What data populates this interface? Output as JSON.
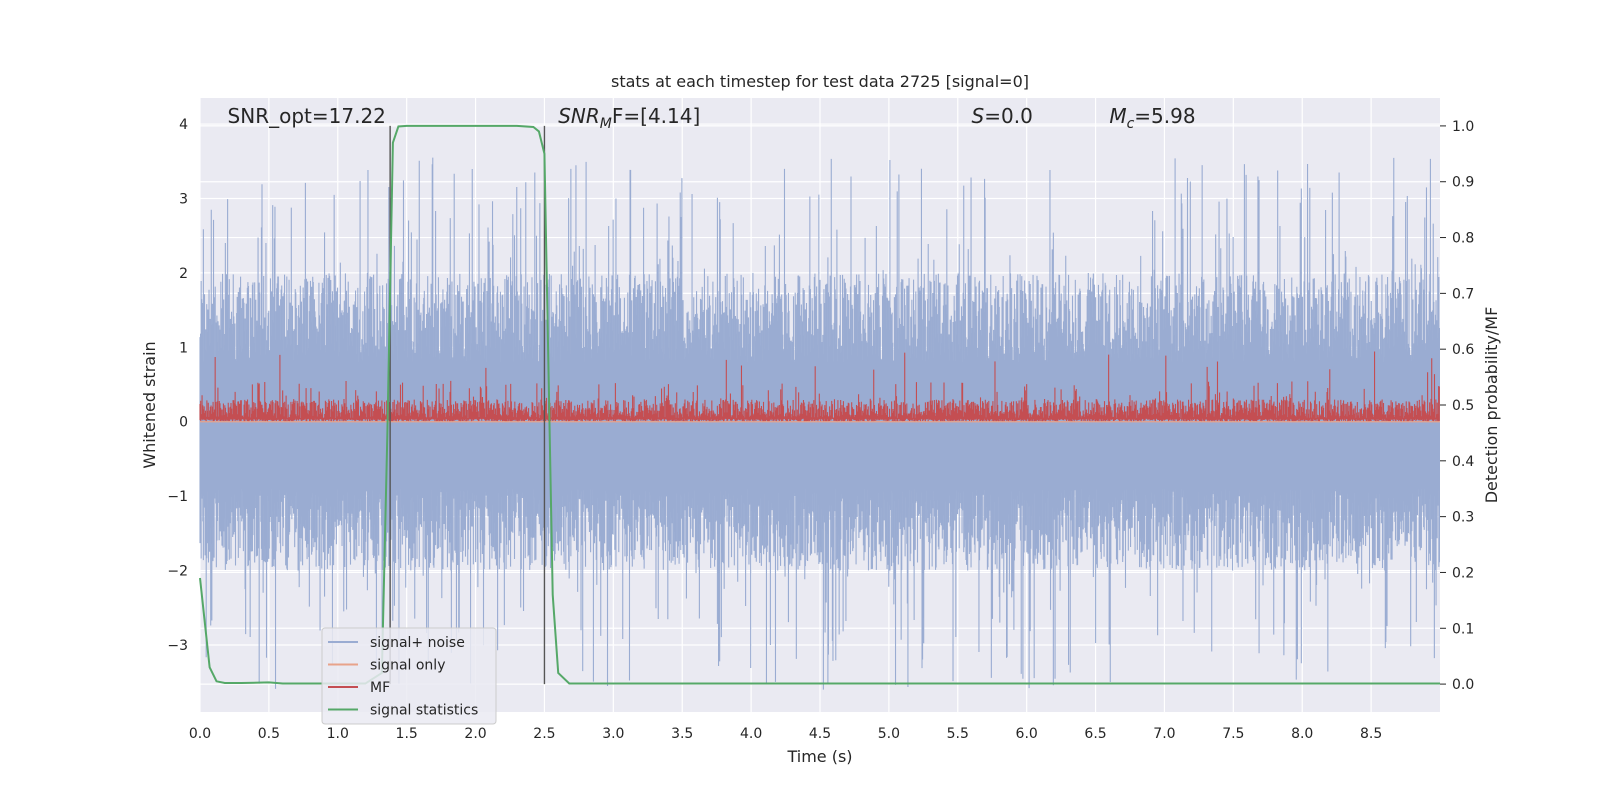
{
  "chart_data": {
    "type": "line",
    "title": "stats at each timestep for test data 2725 [signal=0]",
    "xlabel": "Time (s)",
    "ylabel": "Whitened strain",
    "ylabel_right": "Detection probability/MF",
    "xlim": [
      0,
      9
    ],
    "ylim": [
      -3.9,
      4.35
    ],
    "ylim_right": [
      -0.05,
      1.05
    ],
    "x_ticks": [
      0.0,
      0.5,
      1.0,
      1.5,
      2.0,
      2.5,
      3.0,
      3.5,
      4.0,
      4.5,
      5.0,
      5.5,
      6.0,
      6.5,
      7.0,
      7.5,
      8.0,
      8.5
    ],
    "x_tick_labels": [
      "0.0",
      "0.5",
      "1.0",
      "1.5",
      "2.0",
      "2.5",
      "3.0",
      "3.5",
      "4.0",
      "4.5",
      "5.0",
      "5.5",
      "6.0",
      "6.5",
      "7.0",
      "7.5",
      "8.0",
      "8.5"
    ],
    "y_ticks": [
      4,
      3,
      2,
      1,
      0,
      -1,
      -2,
      -3
    ],
    "y_tick_labels": [
      "4",
      "3",
      "2",
      "1",
      "0",
      "−1",
      "−2",
      "−3"
    ],
    "y_ticks_right": [
      1.0,
      0.9,
      0.8,
      0.7,
      0.6,
      0.5,
      0.4,
      0.3,
      0.2,
      0.1,
      0.0
    ],
    "y_tick_labels_right": [
      "1.0",
      "0.9",
      "0.8",
      "0.7",
      "0.6",
      "0.5",
      "0.4",
      "0.3",
      "0.2",
      "0.1",
      "0.0"
    ],
    "annotations": [
      {
        "id": "snr-opt",
        "text": "SNR_opt=17.22",
        "x": 0.2
      },
      {
        "id": "snr-mf",
        "text": "SNR_MF=[4.14]",
        "base": "SNR",
        "sub": "M",
        "tail": "F=[4.14]",
        "italic": true,
        "x": 2.6
      },
      {
        "id": "s-value",
        "text": "S=0.0",
        "base": "S",
        "tail": "=0.0",
        "italic": true,
        "x": 5.6
      },
      {
        "id": "mc-value",
        "text": "Mc=5.98",
        "base": "M",
        "sub": "c",
        "tail": "=5.98",
        "italic": true,
        "x": 6.6
      }
    ],
    "vlines": [
      1.38,
      2.5
    ],
    "legend": {
      "position": "lower-left",
      "entries": [
        {
          "label": "signal+ noise",
          "color": "#9aacd2"
        },
        {
          "label": "signal only",
          "color": "#e8a38a"
        },
        {
          "label": "MF",
          "color": "#c44e52"
        },
        {
          "label": "signal statistics",
          "color": "#55a868"
        }
      ]
    },
    "series": [
      {
        "name": "signal statistics",
        "axis": "right",
        "color": "#55a868",
        "x": [
          0.0,
          0.07,
          0.12,
          0.18,
          0.3,
          0.5,
          0.6,
          0.9,
          1.2,
          1.32,
          1.36,
          1.4,
          1.44,
          1.5,
          1.6,
          2.0,
          2.3,
          2.42,
          2.46,
          2.5,
          2.56,
          2.6,
          2.68,
          3.0,
          5.0,
          9.0
        ],
        "y": [
          0.19,
          0.03,
          0.005,
          0.002,
          0.002,
          0.003,
          0.001,
          0.001,
          0.001,
          0.02,
          0.45,
          0.97,
          0.999,
          1.0,
          1.0,
          1.0,
          1.0,
          0.998,
          0.99,
          0.95,
          0.16,
          0.02,
          0.001,
          0.001,
          0.001,
          0.001
        ]
      },
      {
        "name": "signal only",
        "axis": "left",
        "color": "#e8a38a",
        "x": [
          0,
          9
        ],
        "y": [
          0,
          0
        ]
      },
      {
        "name": "signal+ noise",
        "axis": "left",
        "color": "#9aacd2",
        "generated": true,
        "envelope_typical": [
          1.8,
          -1.9
        ],
        "extremes": [
          3.55,
          -3.6
        ]
      },
      {
        "name": "MF",
        "axis": "left",
        "color": "#c44e52",
        "generated": true,
        "range": [
          0.0,
          0.95
        ]
      }
    ]
  }
}
